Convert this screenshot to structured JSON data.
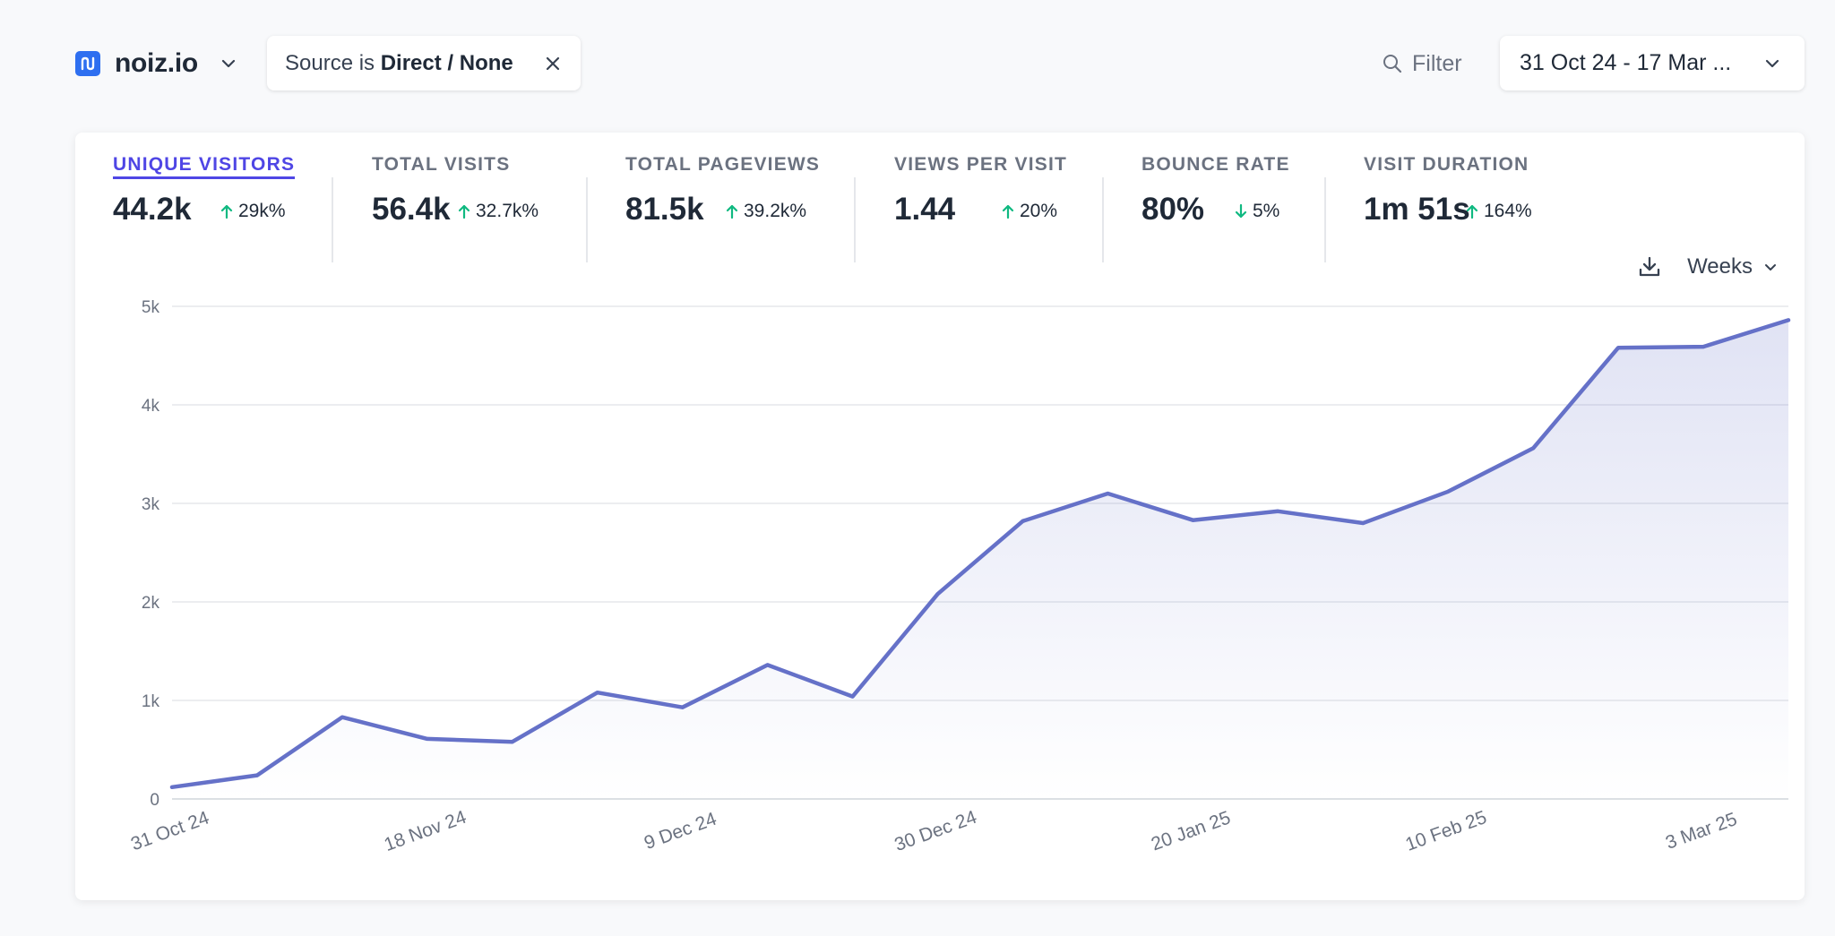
{
  "site": {
    "name": "noiz.io",
    "logo_icon": "wave-logo-icon"
  },
  "filter_pill": {
    "prefix": "Source is",
    "value": "Direct / None"
  },
  "filter_button": {
    "label": "Filter"
  },
  "date_range": {
    "label": "31 Oct 24 - 17 Mar ..."
  },
  "stats": [
    {
      "label": "UNIQUE VISITORS",
      "value": "44.2k",
      "change": "29k%",
      "direction": "up",
      "active": true
    },
    {
      "label": "TOTAL VISITS",
      "value": "56.4k",
      "change": "32.7k%",
      "direction": "up",
      "active": false
    },
    {
      "label": "TOTAL PAGEVIEWS",
      "value": "81.5k",
      "change": "39.2k%",
      "direction": "up",
      "active": false
    },
    {
      "label": "VIEWS PER VISIT",
      "value": "1.44",
      "change": "20%",
      "direction": "up",
      "active": false
    },
    {
      "label": "BOUNCE RATE",
      "value": "80%",
      "change": "5%",
      "direction": "down",
      "active": false
    },
    {
      "label": "VISIT DURATION",
      "value": "1m 51s",
      "change": "164%",
      "direction": "up",
      "active": false
    }
  ],
  "interval": {
    "label": "Weeks"
  },
  "colors": {
    "line": "#6571c8",
    "up": "#10b981",
    "down": "#10b981",
    "active": "#4f46e5"
  },
  "chart_data": {
    "type": "area",
    "series": [
      {
        "values": [
          120,
          240,
          830,
          610,
          580,
          1080,
          930,
          1360,
          1040,
          2080,
          2820,
          3100,
          2830,
          2920,
          2800,
          3120,
          3560,
          4580,
          4590,
          4860
        ]
      }
    ],
    "x_tick_labels": [
      {
        "index": 0,
        "label": "31 Oct 24"
      },
      {
        "index": 3,
        "label": "18 Nov 24"
      },
      {
        "index": 6,
        "label": "9 Dec 24"
      },
      {
        "index": 9,
        "label": "30 Dec 24"
      },
      {
        "index": 12,
        "label": "20 Jan 25"
      },
      {
        "index": 15,
        "label": "10 Feb 25"
      },
      {
        "index": 18,
        "label": "3 Mar 25"
      }
    ],
    "y_ticks": [
      {
        "value": 0,
        "label": "0"
      },
      {
        "value": 1000,
        "label": "1k"
      },
      {
        "value": 2000,
        "label": "2k"
      },
      {
        "value": 3000,
        "label": "3k"
      },
      {
        "value": 4000,
        "label": "4k"
      },
      {
        "value": 5000,
        "label": "5k"
      }
    ],
    "ylim": [
      0,
      5000
    ],
    "grid": true,
    "legend": false
  }
}
